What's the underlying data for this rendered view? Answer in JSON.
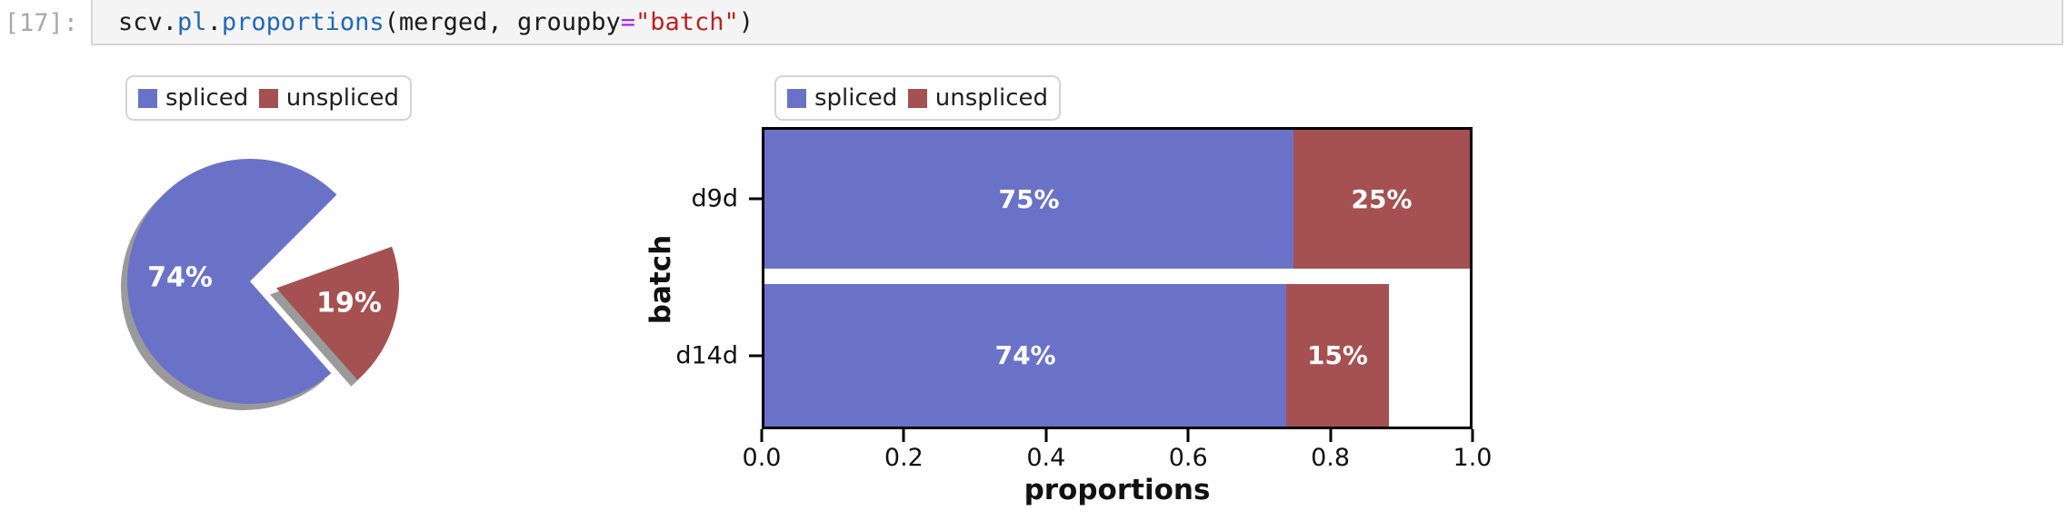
{
  "code_cell": {
    "prompt": "[17]:",
    "tokens": [
      {
        "text": "scv",
        "style": "plain"
      },
      {
        "text": ".",
        "style": "plain"
      },
      {
        "text": "pl",
        "style": "name"
      },
      {
        "text": ".",
        "style": "plain"
      },
      {
        "text": "proportions",
        "style": "name"
      },
      {
        "text": "(merged, groupby",
        "style": "plain"
      },
      {
        "text": "=",
        "style": "operator"
      },
      {
        "text": "\"batch\"",
        "style": "string"
      },
      {
        "text": ")",
        "style": "plain"
      }
    ]
  },
  "colors": {
    "spliced": "#6a72c8",
    "unspliced": "#a55151",
    "shadow": "#9a9a9a",
    "axis": "#000000"
  },
  "chart_data": [
    {
      "type": "pie",
      "legend": [
        "spliced",
        "unspliced"
      ],
      "legend_position": "upper left",
      "start_angle": 45,
      "counterclockwise": true,
      "shadow": true,
      "slices": [
        {
          "label": "spliced",
          "value": 74,
          "display": "74%",
          "color": "#6a72c8",
          "exploded": false
        },
        {
          "label": "unspliced",
          "value": 19,
          "display": "19%",
          "color": "#a55151",
          "exploded": true
        },
        {
          "label": "",
          "value": 7,
          "display": "",
          "color": "none",
          "exploded": false
        }
      ]
    },
    {
      "type": "bar",
      "orientation": "horizontal",
      "stacked": true,
      "legend": [
        "spliced",
        "unspliced"
      ],
      "legend_position": "upper left",
      "categories": [
        "d9d",
        "d14d"
      ],
      "series": [
        {
          "name": "spliced",
          "color": "#6a72c8",
          "values": [
            0.75,
            0.74
          ],
          "labels": [
            "75%",
            "74%"
          ]
        },
        {
          "name": "unspliced",
          "color": "#a55151",
          "values": [
            0.25,
            0.145
          ],
          "labels": [
            "25%",
            "15%"
          ]
        }
      ],
      "xlabel": "proportions",
      "ylabel": "batch",
      "xlim": [
        0.0,
        1.0
      ],
      "xticks": [
        "0.0",
        "0.2",
        "0.4",
        "0.6",
        "0.8",
        "1.0"
      ],
      "grid": false
    }
  ]
}
